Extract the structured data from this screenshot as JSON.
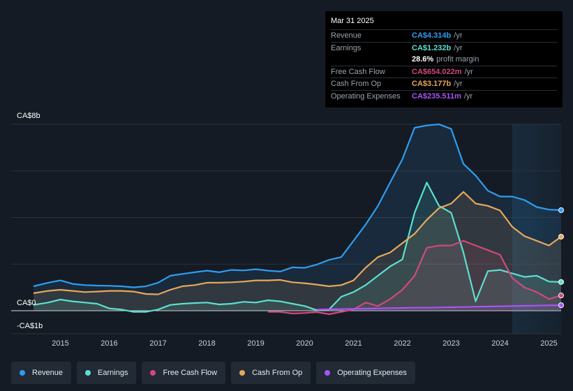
{
  "tooltip": {
    "date": "Mar 31 2025",
    "rows": [
      {
        "label": "Revenue",
        "value": "CA$4.314b",
        "unit": "/yr",
        "color": "#2f9df0"
      },
      {
        "label": "Earnings",
        "value": "CA$1.232b",
        "unit": "/yr",
        "color": "#5be0d0"
      },
      {
        "label": "",
        "value": "28.6%",
        "unit": "profit margin",
        "color": "#ffffff"
      },
      {
        "label": "Free Cash Flow",
        "value": "CA$654.022m",
        "unit": "/yr",
        "color": "#d1497c"
      },
      {
        "label": "Cash From Op",
        "value": "CA$3.177b",
        "unit": "/yr",
        "color": "#e8a85a"
      },
      {
        "label": "Operating Expenses",
        "value": "CA$235.511m",
        "unit": "/yr",
        "color": "#a855f7"
      }
    ]
  },
  "legend": [
    {
      "label": "Revenue",
      "color": "#2f9df0"
    },
    {
      "label": "Earnings",
      "color": "#5be0d0"
    },
    {
      "label": "Free Cash Flow",
      "color": "#d1497c"
    },
    {
      "label": "Cash From Op",
      "color": "#e8a85a"
    },
    {
      "label": "Operating Expenses",
      "color": "#a855f7"
    }
  ],
  "chart_data": {
    "type": "area",
    "ylim": [
      -1,
      8
    ],
    "y_tick_labels": [
      {
        "label": "CA$8b",
        "value": 8
      },
      {
        "label": "CA$0",
        "value": 0
      },
      {
        "label": "-CA$1b",
        "value": -1
      }
    ],
    "x_range": [
      2014.45,
      2025.25
    ],
    "x_tick_labels": [
      "2015",
      "2016",
      "2017",
      "2018",
      "2019",
      "2020",
      "2021",
      "2022",
      "2023",
      "2024",
      "2025"
    ],
    "x_tick_values": [
      2015,
      2016,
      2017,
      2018,
      2019,
      2020,
      2021,
      2022,
      2023,
      2024,
      2025
    ],
    "forecast_start": 2024.25,
    "series": [
      {
        "name": "Revenue",
        "color": "#2f9df0",
        "x": [
          2014.45,
          2014.75,
          2015.0,
          2015.25,
          2015.5,
          2015.75,
          2016.0,
          2016.25,
          2016.5,
          2016.75,
          2017.0,
          2017.25,
          2017.5,
          2017.75,
          2018.0,
          2018.25,
          2018.5,
          2018.75,
          2019.0,
          2019.25,
          2019.5,
          2019.75,
          2020.0,
          2020.25,
          2020.5,
          2020.75,
          2021.0,
          2021.25,
          2021.5,
          2021.75,
          2022.0,
          2022.25,
          2022.5,
          2022.75,
          2023.0,
          2023.25,
          2023.5,
          2023.75,
          2024.0,
          2024.25,
          2024.5,
          2024.75,
          2025.0,
          2025.25
        ],
        "values": [
          1.05,
          1.2,
          1.3,
          1.15,
          1.1,
          1.08,
          1.07,
          1.05,
          1.0,
          1.05,
          1.2,
          1.5,
          1.58,
          1.65,
          1.72,
          1.65,
          1.75,
          1.73,
          1.78,
          1.72,
          1.68,
          1.86,
          1.84,
          1.98,
          2.18,
          2.3,
          3.0,
          3.7,
          4.5,
          5.5,
          6.5,
          7.85,
          7.95,
          8.0,
          7.8,
          6.3,
          5.8,
          5.15,
          4.9,
          4.9,
          4.75,
          4.45,
          4.34,
          4.314
        ]
      },
      {
        "name": "Earnings",
        "color": "#5be0d0",
        "x": [
          2014.45,
          2014.75,
          2015.0,
          2015.25,
          2015.5,
          2015.75,
          2016.0,
          2016.25,
          2016.5,
          2016.75,
          2017.0,
          2017.25,
          2017.5,
          2017.75,
          2018.0,
          2018.25,
          2018.5,
          2018.75,
          2019.0,
          2019.25,
          2019.5,
          2019.75,
          2020.0,
          2020.25,
          2020.5,
          2020.75,
          2021.0,
          2021.25,
          2021.5,
          2021.75,
          2022.0,
          2022.25,
          2022.5,
          2022.75,
          2023.0,
          2023.25,
          2023.5,
          2023.75,
          2024.0,
          2024.25,
          2024.5,
          2024.75,
          2025.0,
          2025.25
        ],
        "values": [
          0.25,
          0.35,
          0.48,
          0.4,
          0.35,
          0.3,
          0.1,
          0.05,
          -0.05,
          -0.05,
          0.05,
          0.25,
          0.3,
          0.33,
          0.35,
          0.27,
          0.3,
          0.38,
          0.35,
          0.45,
          0.4,
          0.3,
          0.2,
          0.02,
          0.05,
          0.6,
          0.8,
          1.1,
          1.5,
          1.9,
          2.2,
          4.2,
          5.5,
          4.5,
          4.2,
          2.5,
          0.4,
          1.7,
          1.75,
          1.6,
          1.45,
          1.5,
          1.25,
          1.232
        ]
      },
      {
        "name": "Free Cash Flow",
        "color": "#d1497c",
        "x": [
          2019.25,
          2019.5,
          2019.75,
          2020.0,
          2020.25,
          2020.5,
          2020.75,
          2021.0,
          2021.25,
          2021.5,
          2021.75,
          2022.0,
          2022.25,
          2022.5,
          2022.75,
          2023.0,
          2023.25,
          2023.5,
          2023.75,
          2024.0,
          2024.25,
          2024.5,
          2024.75,
          2025.0,
          2025.25
        ],
        "values": [
          -0.05,
          -0.05,
          -0.12,
          -0.1,
          -0.06,
          -0.15,
          -0.05,
          0.05,
          0.35,
          0.2,
          0.5,
          0.9,
          1.5,
          2.7,
          2.8,
          2.8,
          3.0,
          2.8,
          2.6,
          2.4,
          1.4,
          1.0,
          0.8,
          0.5,
          0.654
        ]
      },
      {
        "name": "Cash From Op",
        "color": "#e8a85a",
        "x": [
          2014.45,
          2014.75,
          2015.0,
          2015.25,
          2015.5,
          2015.75,
          2016.0,
          2016.25,
          2016.5,
          2016.75,
          2017.0,
          2017.25,
          2017.5,
          2017.75,
          2018.0,
          2018.25,
          2018.5,
          2018.75,
          2019.0,
          2019.25,
          2019.5,
          2019.75,
          2020.0,
          2020.25,
          2020.5,
          2020.75,
          2021.0,
          2021.25,
          2021.5,
          2021.75,
          2022.0,
          2022.25,
          2022.5,
          2022.75,
          2023.0,
          2023.25,
          2023.5,
          2023.75,
          2024.0,
          2024.25,
          2024.5,
          2024.75,
          2025.0,
          2025.25
        ],
        "values": [
          0.75,
          0.85,
          0.9,
          0.85,
          0.8,
          0.82,
          0.85,
          0.85,
          0.82,
          0.72,
          0.7,
          0.9,
          1.05,
          1.1,
          1.2,
          1.2,
          1.22,
          1.25,
          1.3,
          1.3,
          1.32,
          1.22,
          1.18,
          1.12,
          1.05,
          1.1,
          1.3,
          1.85,
          2.3,
          2.5,
          2.9,
          3.3,
          3.9,
          4.4,
          4.6,
          5.1,
          4.6,
          4.5,
          4.3,
          3.6,
          3.2,
          3.0,
          2.8,
          3.177
        ]
      },
      {
        "name": "Operating Expenses",
        "color": "#a855f7",
        "x": [
          2020.25,
          2020.5,
          2020.75,
          2021.0,
          2021.25,
          2021.5,
          2021.75,
          2022.0,
          2022.25,
          2022.5,
          2022.75,
          2023.0,
          2023.25,
          2023.5,
          2023.75,
          2024.0,
          2024.25,
          2024.5,
          2024.75,
          2025.0,
          2025.25
        ],
        "values": [
          0.05,
          0.06,
          0.07,
          0.08,
          0.09,
          0.1,
          0.11,
          0.12,
          0.13,
          0.13,
          0.14,
          0.15,
          0.16,
          0.17,
          0.18,
          0.19,
          0.2,
          0.21,
          0.22,
          0.23,
          0.2355
        ]
      }
    ]
  }
}
